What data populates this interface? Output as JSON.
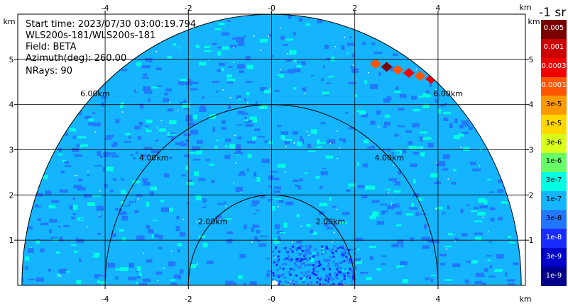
{
  "info": {
    "start_time": "Start time: 2023/07/30 03:00:19.794",
    "instrument": "WLS200s-181/WLS200s-181",
    "field": "Field: BETA",
    "azimuth": "Azimuth(deg): 260.00",
    "nrays": "NRays: 90"
  },
  "colorbar": {
    "title": "-1 sr",
    "labels": [
      "0.005",
      "0.001",
      "0.0003",
      "0.0001",
      "3e-5",
      "1e-5",
      "3e-6",
      "1e-6",
      "3e-7",
      "1e-7",
      "3e-8",
      "1e-8",
      "3e-9",
      "1e-9"
    ],
    "colors": [
      "#7a0000",
      "#cc0000",
      "#f00000",
      "#ff5500",
      "#ff9900",
      "#ffd700",
      "#d9ff1a",
      "#66ff66",
      "#00ffe0",
      "#14b4ff",
      "#2277ff",
      "#1a2bff",
      "#0000c8",
      "#00008b"
    ]
  },
  "chart_data": {
    "type": "heatmap",
    "projection": "RHI half-disc (range vs height)",
    "xlabel": "km",
    "ylabel": "km",
    "xlim": [
      -6.1,
      6.1
    ],
    "ylim": [
      0,
      6.0
    ],
    "x_ticks": [
      -4,
      -2,
      0,
      2,
      4
    ],
    "x_tick_labels": [
      "-4",
      "-2",
      "-0",
      "2",
      "4"
    ],
    "y_ticks": [
      1,
      2,
      3,
      4,
      5
    ],
    "y_tick_labels": [
      "1",
      "2",
      "3",
      "4",
      "5"
    ],
    "grid": true,
    "max_range_km": 6.0,
    "range_rings_km": [
      2,
      4,
      6
    ],
    "range_ring_labels": [
      "2.00km",
      "4.00km",
      "6.00km"
    ],
    "field": "BETA",
    "azimuth_deg": 260.0,
    "nrays": 90,
    "background_level": "1e-7",
    "features": [
      {
        "description": "high backscatter patch",
        "x_km": [
          2.5,
          4.1
        ],
        "y_km": [
          4.5,
          4.9
        ],
        "level": "1e-4"
      },
      {
        "description": "low-level enhanced region",
        "x_km": [
          0.0,
          2.0
        ],
        "y_km": [
          0.0,
          0.9
        ],
        "level": "3e-8"
      }
    ]
  }
}
